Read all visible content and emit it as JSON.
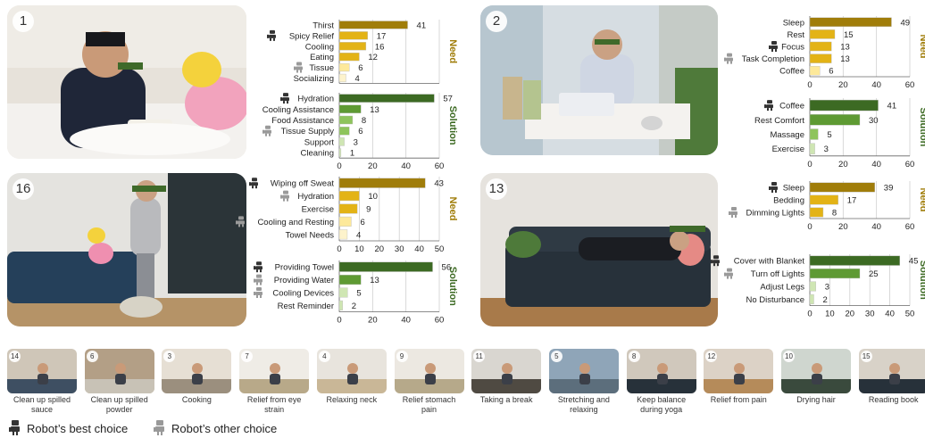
{
  "panels": [
    {
      "num": "1"
    },
    {
      "num": "2"
    },
    {
      "num": "16"
    },
    {
      "num": "13"
    }
  ],
  "legend": {
    "best": "Robot’s best choice",
    "other": "Robot’s other choice"
  },
  "thumbs": [
    {
      "num": "14",
      "caption": "Clean up spilled sauce"
    },
    {
      "num": "6",
      "caption": "Clean up spilled powder"
    },
    {
      "num": "3",
      "caption": "Cooking"
    },
    {
      "num": "7",
      "caption": "Relief from eye strain"
    },
    {
      "num": "4",
      "caption": "Relaxing neck"
    },
    {
      "num": "9",
      "caption": "Relief stomach pain"
    },
    {
      "num": "11",
      "caption": "Taking a break"
    },
    {
      "num": "5",
      "caption": "Stretching and relaxing"
    },
    {
      "num": "8",
      "caption": "Keep balance during yoga"
    },
    {
      "num": "12",
      "caption": "Relief from pain"
    },
    {
      "num": "10",
      "caption": "Drying hair"
    },
    {
      "num": "15",
      "caption": "Reading book"
    }
  ],
  "colors": {
    "need_dark": "#a07d0a",
    "need_mid": "#e3b316",
    "need_light": "#fde99a",
    "need_pale": "#fdf3cc",
    "sol_dark": "#3c6a23",
    "sol_mid": "#5e9a33",
    "sol_light": "#8ec45c",
    "sol_pale": "#cfe6b3",
    "need_label": "#a07d0a",
    "sol_label": "#3c6a23"
  },
  "chart_data": [
    {
      "type": "bar",
      "orientation": "horizontal",
      "panel": "1",
      "side_label": "Need",
      "categories": [
        "Thirst",
        "Spicy Relief",
        "Cooling",
        "Eating",
        "Tissue",
        "Socializing"
      ],
      "values": [
        41,
        17,
        16,
        12,
        6,
        4
      ],
      "robot": [
        "",
        "best",
        "",
        "",
        "other",
        ""
      ],
      "xlim": [
        0,
        60
      ],
      "ticks": [],
      "grid": true
    },
    {
      "type": "bar",
      "orientation": "horizontal",
      "panel": "1",
      "side_label": "Solution",
      "categories": [
        "Hydration",
        "Cooling Assistance",
        "Food Assistance",
        "Tissue Supply",
        "Support",
        "Cleaning"
      ],
      "values": [
        57,
        13,
        8,
        6,
        3,
        1
      ],
      "robot": [
        "best",
        "",
        "",
        "other",
        "",
        ""
      ],
      "xlim": [
        0,
        60
      ],
      "ticks": [
        0,
        20,
        40,
        60
      ],
      "grid": true
    },
    {
      "type": "bar",
      "orientation": "horizontal",
      "panel": "2",
      "side_label": "Need",
      "categories": [
        "Sleep",
        "Rest",
        "Focus",
        "Task Completion",
        "Coffee"
      ],
      "values": [
        49,
        15,
        13,
        13,
        6
      ],
      "robot": [
        "",
        "",
        "best",
        "other",
        ""
      ],
      "xlim": [
        0,
        60
      ],
      "ticks": [
        0,
        20,
        40,
        60
      ],
      "grid": true
    },
    {
      "type": "bar",
      "orientation": "horizontal",
      "panel": "2",
      "side_label": "Solution",
      "categories": [
        "Coffee",
        "Rest Comfort",
        "Massage",
        "Exercise"
      ],
      "values": [
        41,
        30,
        5,
        3
      ],
      "robot": [
        "best",
        "",
        "",
        ""
      ],
      "xlim": [
        0,
        60
      ],
      "ticks": [
        0,
        20,
        40,
        60
      ],
      "grid": true
    },
    {
      "type": "bar",
      "orientation": "horizontal",
      "panel": "16",
      "side_label": "Need",
      "categories": [
        "Wiping off Sweat",
        "Hydration",
        "Exercise",
        "Cooling and Resting",
        "Towel Needs"
      ],
      "values": [
        43,
        10,
        9,
        6,
        4
      ],
      "robot": [
        "best",
        "other",
        "",
        "other",
        ""
      ],
      "xlim": [
        0,
        50
      ],
      "ticks": [
        0,
        10,
        20,
        30,
        40,
        50
      ],
      "grid": true
    },
    {
      "type": "bar",
      "orientation": "horizontal",
      "panel": "16",
      "side_label": "Solution",
      "categories": [
        "Providing Towel",
        "Providing Water",
        "Cooling Devices",
        "Rest Reminder"
      ],
      "values": [
        56,
        13,
        5,
        2
      ],
      "robot": [
        "best",
        "other",
        "other",
        ""
      ],
      "xlim": [
        0,
        60
      ],
      "ticks": [
        0,
        20,
        40,
        60
      ],
      "grid": true
    },
    {
      "type": "bar",
      "orientation": "horizontal",
      "panel": "13",
      "side_label": "Need",
      "categories": [
        "Sleep",
        "Bedding",
        "Dimming Lights"
      ],
      "values": [
        39,
        17,
        8
      ],
      "robot": [
        "best",
        "",
        "other"
      ],
      "xlim": [
        0,
        60
      ],
      "ticks": [
        0,
        20,
        40,
        60
      ],
      "grid": true
    },
    {
      "type": "bar",
      "orientation": "horizontal",
      "panel": "13",
      "side_label": "Solution",
      "categories": [
        "Cover with Blanket",
        "Turn off Lights",
        "Adjust Legs",
        "No Disturbance"
      ],
      "values": [
        45,
        25,
        3,
        2
      ],
      "robot": [
        "best",
        "other",
        "",
        ""
      ],
      "xlim": [
        0,
        50
      ],
      "ticks": [
        0,
        10,
        20,
        30,
        40,
        50
      ],
      "grid": true
    }
  ]
}
